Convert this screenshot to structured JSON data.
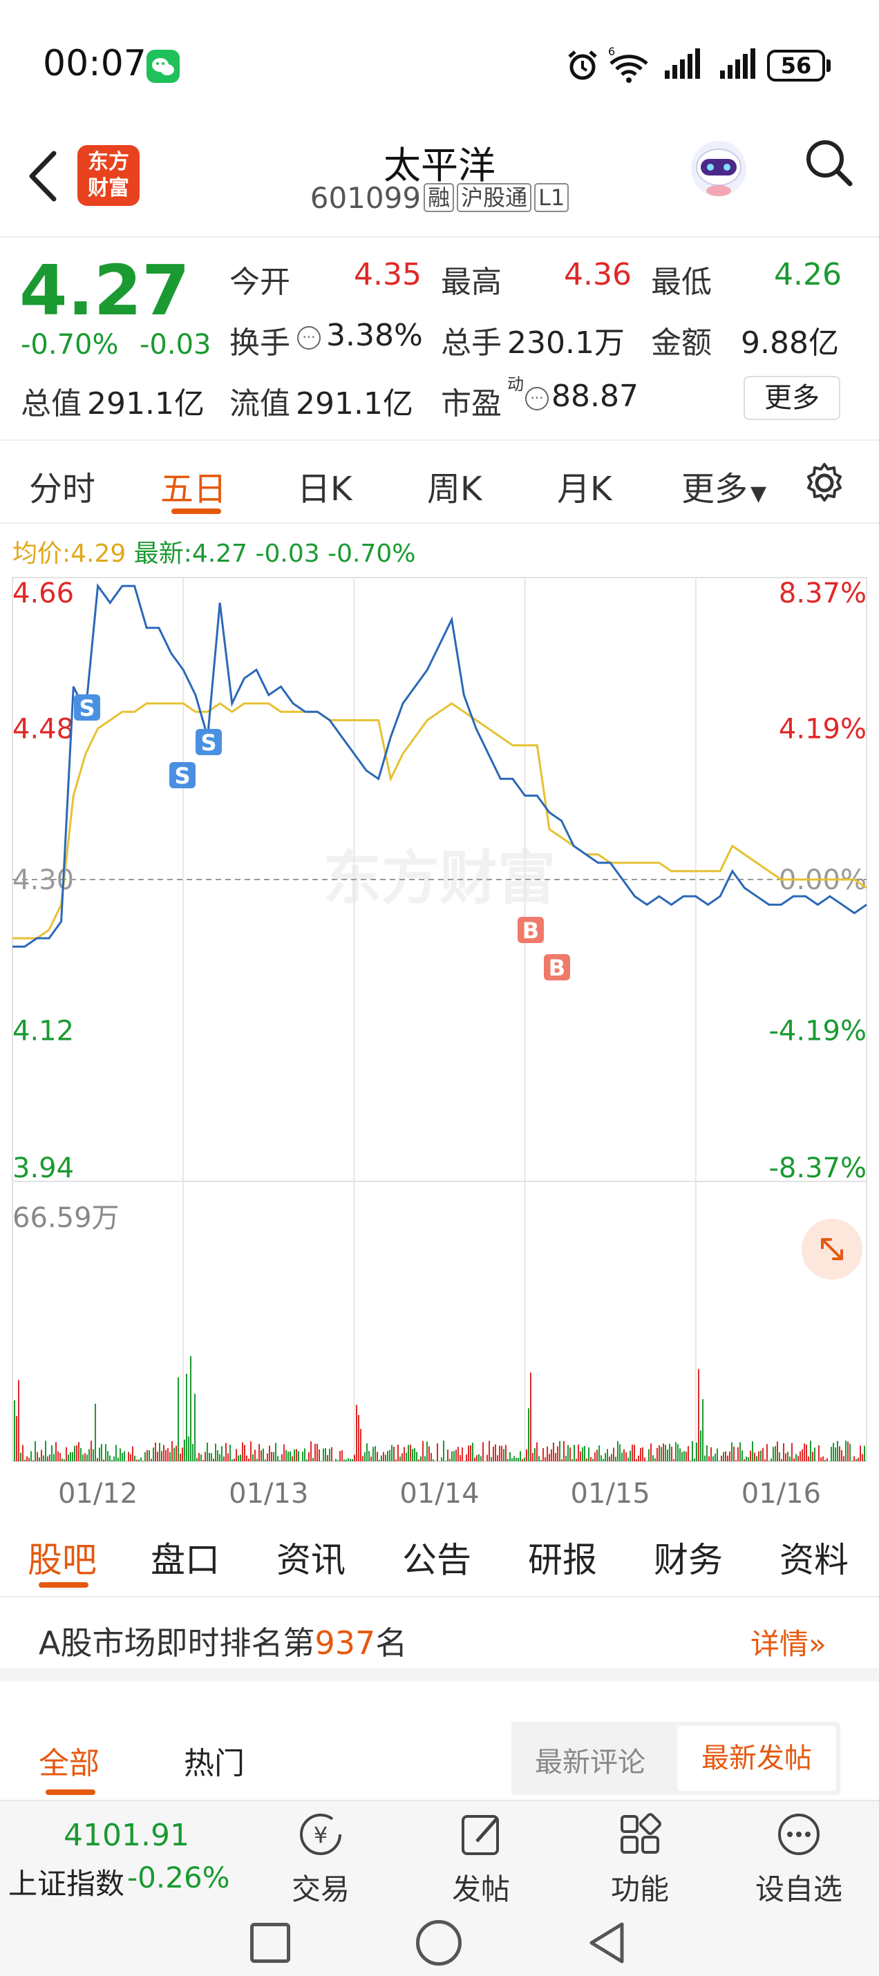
{
  "status_bar": {
    "time": "00:07",
    "battery": "56",
    "network": "6"
  },
  "header": {
    "back_label": "<",
    "logo_line1": "东方",
    "logo_line2": "财富",
    "title": "太平洋",
    "code": "601099",
    "tags": [
      "融",
      "沪股通",
      "L1"
    ]
  },
  "quote": {
    "price": "4.27",
    "change_pct": "-0.70%",
    "change": "-0.03",
    "open_label": "今开",
    "open": "4.35",
    "high_label": "最高",
    "high": "4.36",
    "low_label": "最低",
    "low": "4.26",
    "turnover_label": "换手",
    "turnover": "3.38%",
    "volume_label": "总手",
    "volume": "230.1万",
    "amount_label": "金额",
    "amount": "9.88亿",
    "mktcap_label": "总值",
    "mktcap": "291.1亿",
    "float_label": "流值",
    "float": "291.1亿",
    "pe_label": "市盈",
    "pe_sup": "动",
    "pe": "88.87",
    "more_button": "更多"
  },
  "chart_tabs": [
    "分时",
    "五日",
    "日K",
    "周K",
    "月K",
    "更多"
  ],
  "chart_tab_active": 1,
  "legend": {
    "avg_label": "均价:",
    "avg": "4.29",
    "latest_label": "最新:",
    "latest": "4.27",
    "latest_change": "-0.03",
    "latest_pct": "-0.70%"
  },
  "watermark": "东方财富",
  "colors": {
    "up": "#e02828",
    "down": "#1a9a31",
    "accent": "#e5590f",
    "price_line": "#2a68b8",
    "avg_line": "#e6c132",
    "buy": "#f07a6a",
    "sell": "#4a90e2"
  },
  "chart_data": {
    "type": "line",
    "title": "",
    "series": [
      {
        "values": [
          4.22,
          4.22,
          4.23,
          4.23,
          4.25,
          4.53,
          4.5,
          4.65,
          4.63,
          4.65,
          4.65,
          4.6,
          4.6,
          4.57,
          4.55,
          4.52,
          4.47,
          4.63,
          4.51,
          4.54,
          4.55,
          4.52,
          4.53,
          4.51,
          4.5,
          4.5,
          4.49,
          4.47,
          4.45,
          4.43,
          4.42,
          4.47,
          4.51,
          4.53,
          4.55,
          4.58,
          4.61,
          4.52,
          4.48,
          4.45,
          4.42,
          4.42,
          4.4,
          4.4,
          4.38,
          4.37,
          4.34,
          4.33,
          4.32,
          4.32,
          4.3,
          4.28,
          4.27,
          4.28,
          4.27,
          4.28,
          4.28,
          4.27,
          4.28,
          4.31,
          4.29,
          4.28,
          4.27,
          4.27,
          4.28,
          4.28,
          4.27,
          4.28,
          4.27,
          4.26,
          4.27
        ]
      },
      {
        "values": [
          4.23,
          4.23,
          4.23,
          4.24,
          4.27,
          4.4,
          4.45,
          4.48,
          4.49,
          4.5,
          4.5,
          4.51,
          4.51,
          4.51,
          4.51,
          4.5,
          4.5,
          4.51,
          4.5,
          4.51,
          4.51,
          4.51,
          4.5,
          4.5,
          4.5,
          4.5,
          4.49,
          4.49,
          4.49,
          4.49,
          4.49,
          4.42,
          4.45,
          4.47,
          4.49,
          4.5,
          4.51,
          4.5,
          4.49,
          4.48,
          4.47,
          4.46,
          4.46,
          4.46,
          4.36,
          4.35,
          4.34,
          4.33,
          4.33,
          4.32,
          4.32,
          4.32,
          4.32,
          4.32,
          4.31,
          4.31,
          4.31,
          4.31,
          4.31,
          4.34,
          4.33,
          4.32,
          4.31,
          4.3,
          4.3,
          4.3,
          4.3,
          4.3,
          4.3,
          4.3,
          4.29
        ]
      }
    ],
    "prev_close": 4.3,
    "ylim": [
      3.94,
      4.66
    ],
    "y_ticks": [
      "4.66",
      "4.48",
      "4.30",
      "4.12",
      "3.94"
    ],
    "pct_ticks": [
      "8.37%",
      "4.19%",
      "0.00%",
      "-4.19%",
      "-8.37%"
    ],
    "x_ticks": [
      "01/12",
      "01/13",
      "01/14",
      "01/15",
      "01/16"
    ],
    "volume_max_label": "66.59万",
    "trade_markers": [
      {
        "label": "S"
      },
      {
        "label": "S"
      },
      {
        "label": "S"
      },
      {
        "label": "B"
      },
      {
        "label": "B"
      }
    ]
  },
  "info_tabs": [
    "股吧",
    "盘口",
    "资讯",
    "公告",
    "研报",
    "财务",
    "资料"
  ],
  "info_tab_active": 0,
  "rank": {
    "prefix": "A股市场即时排名第",
    "number": "937",
    "suffix": "名",
    "detail": "详情"
  },
  "feed": {
    "tabs": [
      "全部",
      "热门"
    ],
    "sort": [
      "最新评论",
      "最新发帖"
    ]
  },
  "bottom_nav": {
    "index_value": "4101.91",
    "index_name": "上证指数",
    "index_pct": "-0.26%",
    "items": [
      "交易",
      "发帖",
      "功能",
      "设自选"
    ]
  }
}
